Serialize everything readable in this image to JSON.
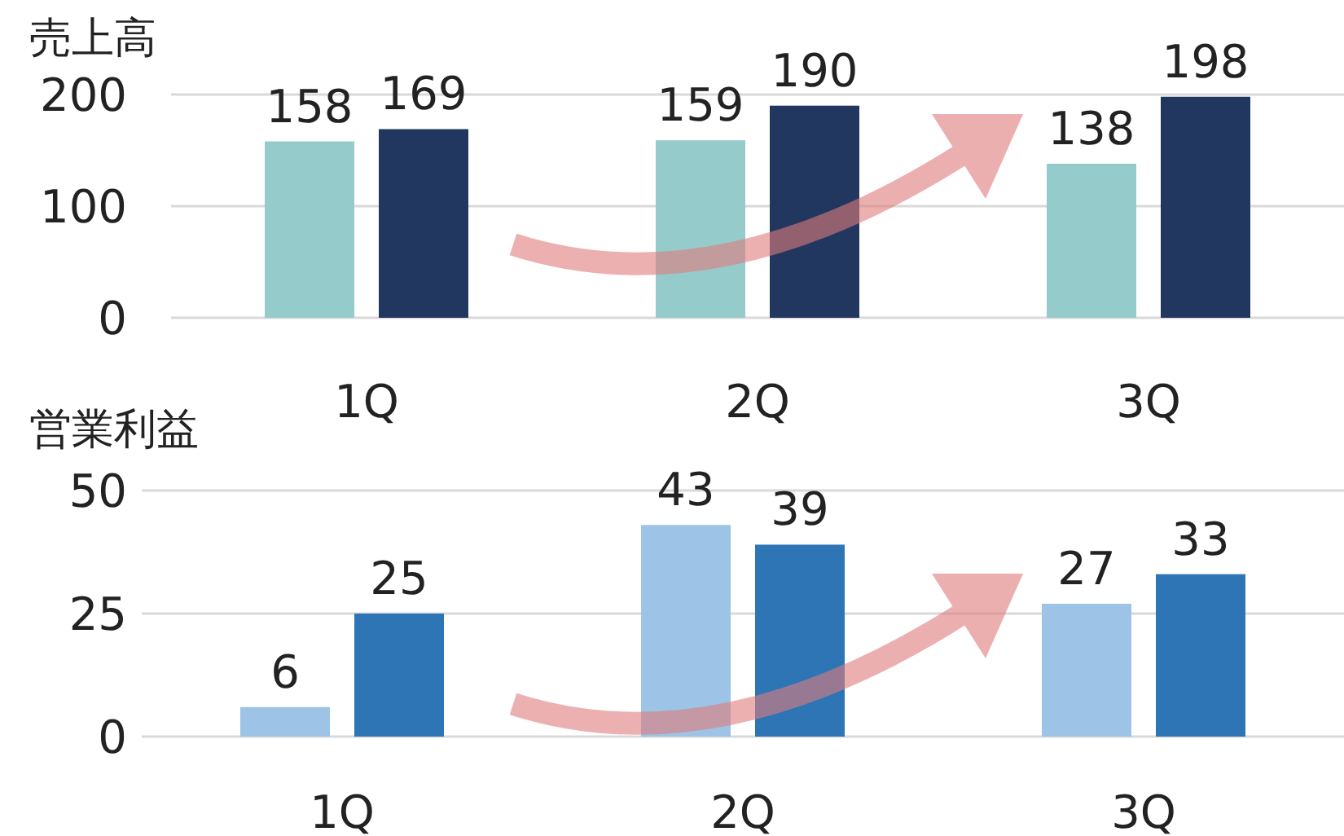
{
  "chart_data": [
    {
      "type": "bar",
      "ylabel": "売上高",
      "categories": [
        "1Q",
        "2Q",
        "3Q"
      ],
      "series": [
        {
          "color": "#96cbcc",
          "values": [
            158,
            159,
            138
          ]
        },
        {
          "color": "#22375f",
          "values": [
            169,
            190,
            198
          ]
        }
      ],
      "ylim": [
        0,
        200
      ],
      "yticks": [
        0,
        100,
        200
      ],
      "grid": "y",
      "data_labels": true
    },
    {
      "type": "bar",
      "ylabel": "営業利益",
      "categories": [
        "1Q",
        "2Q",
        "3Q"
      ],
      "series": [
        {
          "color": "#9dc3e6",
          "values": [
            6,
            43,
            27
          ]
        },
        {
          "color": "#2e75b6",
          "values": [
            25,
            39,
            33
          ]
        }
      ],
      "ylim": [
        0,
        50
      ],
      "yticks": [
        0,
        25,
        50
      ],
      "grid": "y",
      "data_labels": true
    }
  ]
}
